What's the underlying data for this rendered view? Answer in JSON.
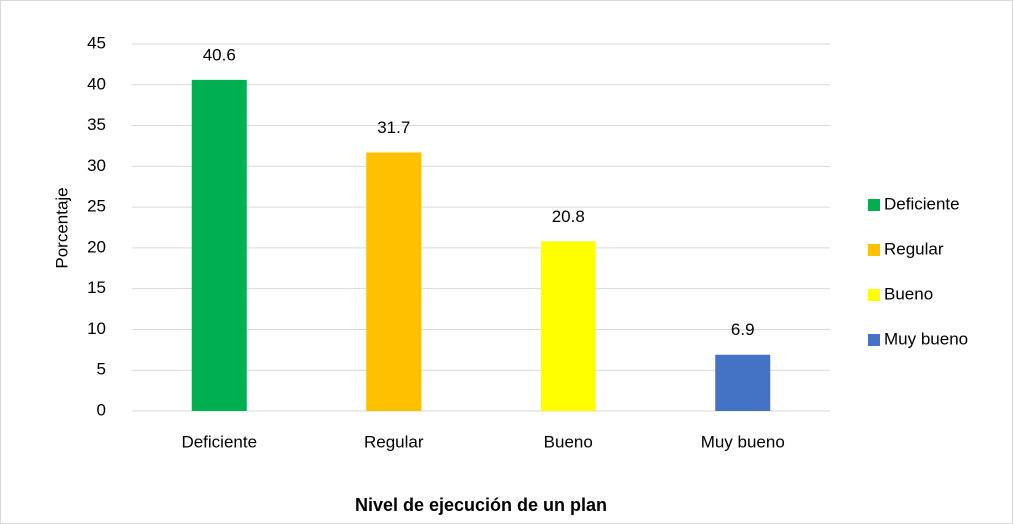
{
  "chart_data": {
    "type": "bar",
    "x_label": "Nivel de ejecución de un plan",
    "y_label": "Porcentaje",
    "categories": [
      "Deficiente",
      "Regular",
      "Bueno",
      "Muy bueno"
    ],
    "values": [
      40.6,
      31.7,
      20.8,
      6.9
    ],
    "colors": [
      "#00b050",
      "#ffc000",
      "#ffff00",
      "#4472c4"
    ],
    "ylim": [
      0,
      45
    ],
    "yticks": [
      0,
      5,
      10,
      15,
      20,
      25,
      30,
      35,
      40,
      45
    ],
    "grid": true,
    "legend": "right",
    "data_labels": true
  }
}
